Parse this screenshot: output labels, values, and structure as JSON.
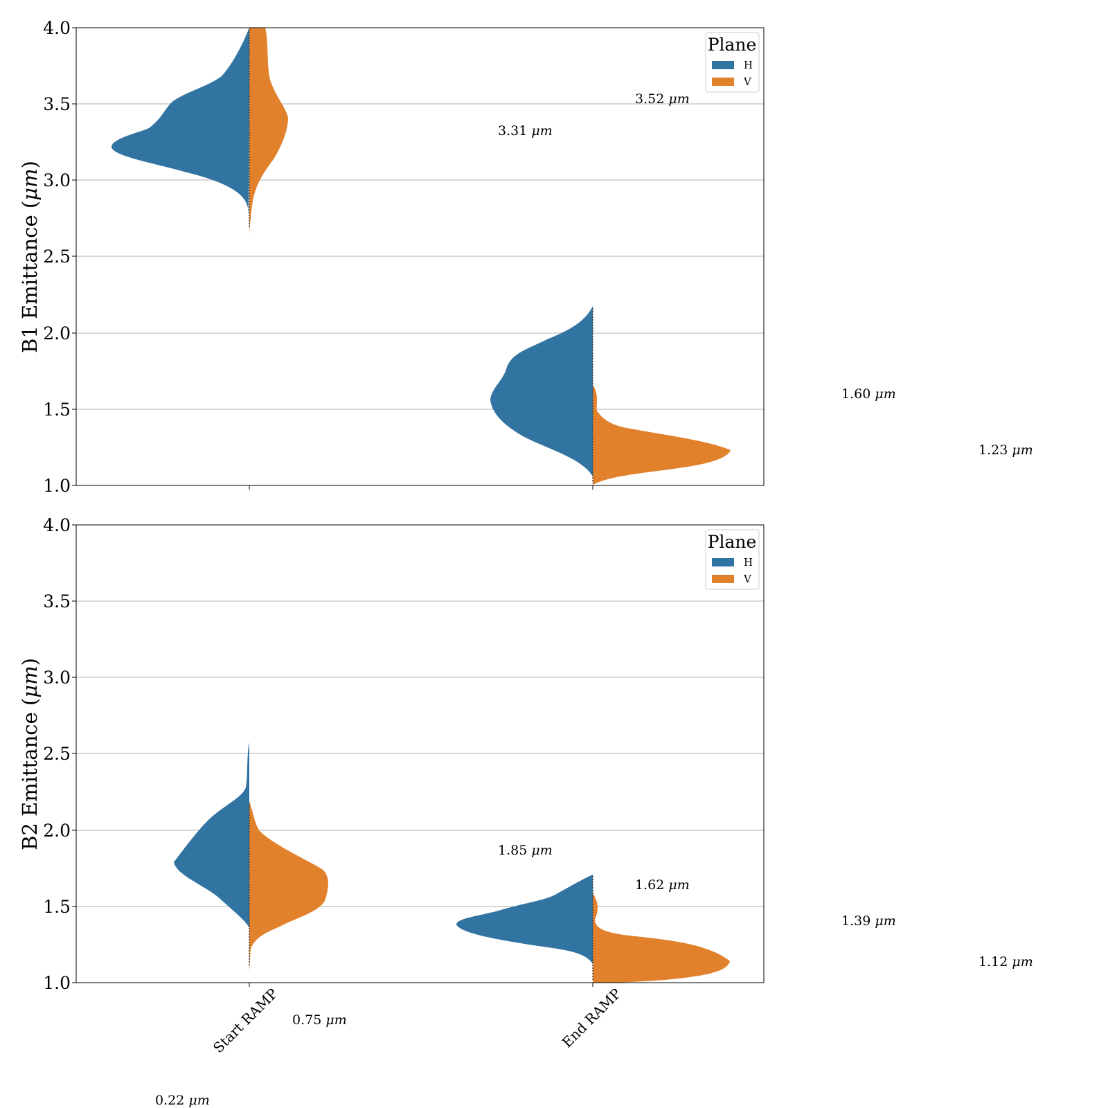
{
  "colors": {
    "H": "#3274a1",
    "V": "#e1812c",
    "grid": "#b0b0b0",
    "axis": "#000000"
  },
  "chart_data": [
    {
      "type": "violin",
      "split": true,
      "ylabel": "B1 Emittance",
      "ylabel_unit": "μm",
      "ylim": [
        1.0,
        4.0
      ],
      "yticks": [
        "1.0",
        "1.5",
        "2.0",
        "2.5",
        "3.0",
        "3.5",
        "4.0"
      ],
      "categories": [
        "Start RAMP",
        "End RAMP"
      ],
      "grid": "horizontal",
      "legend": {
        "title": "Plane",
        "position": "top-right",
        "items": [
          "H",
          "V"
        ]
      },
      "series": [
        {
          "name": "H",
          "groups": [
            {
              "category": "Start RAMP",
              "min": 2.77,
              "max": 4.0,
              "peak": 3.22
            },
            {
              "category": "End RAMP",
              "min": 1.03,
              "max": 2.18,
              "peak": 1.55
            }
          ]
        },
        {
          "name": "V",
          "groups": [
            {
              "category": "Start RAMP",
              "min": 2.65,
              "max": 4.0,
              "peak": 3.4
            },
            {
              "category": "End RAMP",
              "min": 1.0,
              "max": 1.66,
              "peak": 1.22
            }
          ]
        }
      ],
      "annotations": [
        {
          "text": "3.31",
          "unit": "μm"
        },
        {
          "text": "3.52",
          "unit": "μm"
        },
        {
          "text": "1.60",
          "unit": "μm"
        },
        {
          "text": "1.23",
          "unit": "μm"
        }
      ]
    },
    {
      "type": "violin",
      "split": true,
      "ylabel": "B2 Emittance",
      "ylabel_unit": "μm",
      "ylim": [
        1.0,
        4.0
      ],
      "yticks": [
        "1.0",
        "1.5",
        "2.0",
        "2.5",
        "3.0",
        "3.5",
        "4.0"
      ],
      "categories": [
        "Start RAMP",
        "End RAMP"
      ],
      "grid": "horizontal",
      "legend": {
        "title": "Plane",
        "position": "top-right",
        "items": [
          "H",
          "V"
        ]
      },
      "series": [
        {
          "name": "H",
          "groups": [
            {
              "category": "Start RAMP",
              "min": 1.37,
              "max": 2.57,
              "peak": 1.79
            },
            {
              "category": "End RAMP",
              "min": 1.14,
              "max": 1.71,
              "peak": 1.36
            }
          ]
        },
        {
          "name": "V",
          "groups": [
            {
              "category": "Start RAMP",
              "min": 1.07,
              "max": 2.2,
              "peak": 1.63
            },
            {
              "category": "End RAMP",
              "min": 1.0,
              "max": 1.59,
              "peak": 1.12
            }
          ]
        }
      ],
      "annotations": [
        {
          "text": "0.75",
          "unit": "μm"
        },
        {
          "text": "0.22",
          "unit": "μm"
        },
        {
          "text": "1.85",
          "unit": "μm"
        },
        {
          "text": "1.62",
          "unit": "μm"
        },
        {
          "text": "1.39",
          "unit": "μm"
        },
        {
          "text": "1.12",
          "unit": "μm"
        }
      ]
    }
  ]
}
